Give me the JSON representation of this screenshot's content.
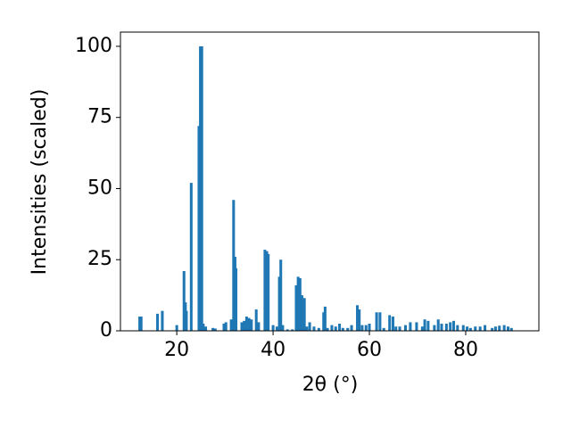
{
  "chart_data": {
    "type": "bar",
    "x_label": "2θ (°)",
    "y_label": "Intensities (scaled)",
    "color": "#1f77b4",
    "x": [
      12.3,
      12.6,
      16,
      17,
      20,
      21.5,
      21.8,
      22.0,
      23,
      24.6,
      24.9,
      25.2,
      25.5,
      26,
      27.5,
      28,
      29.8,
      30.2,
      31.3,
      31.8,
      32.1,
      32.3,
      33.5,
      34,
      34.5,
      35,
      35.5,
      36.5,
      37,
      38.3,
      38.7,
      39,
      40,
      40.8,
      41.3,
      41.6,
      42,
      43,
      44,
      44.8,
      45.2,
      45.6,
      46,
      46.5,
      47,
      47.6,
      48.5,
      49.5,
      50.5,
      50.8,
      51.3,
      52.2,
      53,
      53.8,
      54.5,
      55.5,
      56.3,
      57.5,
      57.9,
      58.5,
      59.3,
      60,
      61.5,
      62.2,
      63,
      64.2,
      64.9,
      65.5,
      66.3,
      67.5,
      68.5,
      69.8,
      71,
      71.5,
      72.2,
      73.5,
      74.3,
      75,
      76,
      76.8,
      77.5,
      78.3,
      79.5,
      80.3,
      81,
      82,
      83,
      84,
      85.5,
      86.2,
      87,
      88,
      88.8,
      89.5
    ],
    "values": [
      5,
      5,
      6,
      7,
      2,
      21,
      10,
      7,
      52,
      72,
      100,
      100,
      2.5,
      1.5,
      1,
      0.8,
      2.5,
      3,
      4,
      46,
      26,
      22,
      3,
      3.5,
      5,
      4.5,
      4,
      7.5,
      3,
      28.5,
      28,
      27,
      2,
      1.5,
      19,
      25,
      2,
      0.5,
      0.5,
      16,
      19,
      18.5,
      12.5,
      11.5,
      1.5,
      3,
      1.5,
      1,
      6.5,
      8.5,
      1,
      2,
      1.5,
      2.5,
      1,
      1,
      2,
      9,
      7.5,
      2,
      2,
      2.5,
      6.5,
      6.5,
      1,
      5.5,
      5,
      1.5,
      1.5,
      2,
      3,
      3,
      1.5,
      4,
      3.5,
      2,
      4,
      2.5,
      2.5,
      3,
      3.5,
      2,
      2,
      1.5,
      1,
      1.5,
      1.5,
      2,
      1,
      1.5,
      1.8,
      2,
      1.5,
      1
    ],
    "xlim": [
      8.3,
      95.2
    ],
    "xticks": [
      20,
      40,
      60,
      80
    ],
    "ylim": [
      0,
      105
    ],
    "yticks": [
      0,
      25,
      50,
      75,
      100
    ]
  }
}
